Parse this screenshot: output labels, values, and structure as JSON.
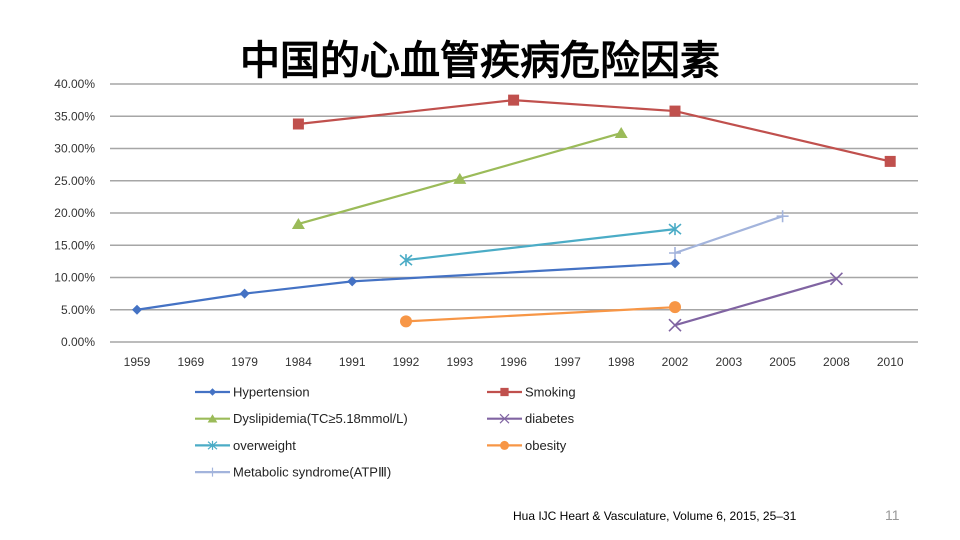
{
  "slide": {
    "title": "中国的心血管疾病危险因素",
    "citation": "Hua IJC Heart & Vasculature, Volume 6, 2015, 25–31",
    "page_number": "11"
  },
  "chart_data": {
    "type": "line",
    "title": "中国的心血管疾病危险因素",
    "xlabel": "",
    "ylabel": "",
    "categories": [
      "1959",
      "1969",
      "1979",
      "1984",
      "1991",
      "1992",
      "1993",
      "1996",
      "1997",
      "1998",
      "2002",
      "2003",
      "2005",
      "2008",
      "2010"
    ],
    "ylim": [
      0,
      40
    ],
    "yticks": [
      "0.00%",
      "5.00%",
      "10.00%",
      "15.00%",
      "20.00%",
      "25.00%",
      "30.00%",
      "35.00%",
      "40.00%"
    ],
    "grid": true,
    "legend_position": "bottom",
    "series": [
      {
        "name": "Hypertension",
        "color": "#4472C4",
        "marker": "diamond",
        "points": [
          [
            "1959",
            5.0
          ],
          [
            "1979",
            7.5
          ],
          [
            "1991",
            9.4
          ],
          [
            "2002",
            12.2
          ]
        ]
      },
      {
        "name": "Smoking",
        "color": "#C0504D",
        "marker": "square",
        "points": [
          [
            "1984",
            33.8
          ],
          [
            "1996",
            37.5
          ],
          [
            "2002",
            35.8
          ],
          [
            "2010",
            28.0
          ]
        ]
      },
      {
        "name": "Dyslipidemia(TC≥5.18mmol/L)",
        "color": "#9BBB59",
        "marker": "triangle",
        "points": [
          [
            "1984",
            18.3
          ],
          [
            "1993",
            25.3
          ],
          [
            "1998",
            32.4
          ]
        ]
      },
      {
        "name": "diabetes",
        "color": "#8064A2",
        "marker": "x",
        "points": [
          [
            "2002",
            2.6
          ],
          [
            "2008",
            9.8
          ]
        ]
      },
      {
        "name": "overweight",
        "color": "#4BACC6",
        "marker": "asterisk",
        "points": [
          [
            "1992",
            12.7
          ],
          [
            "2002",
            17.5
          ]
        ]
      },
      {
        "name": "obesity",
        "color": "#F79646",
        "marker": "circle",
        "points": [
          [
            "1992",
            3.2
          ],
          [
            "2002",
            5.4
          ]
        ]
      },
      {
        "name": "Metabolic syndrome(ATPⅢ)",
        "color": "#A3B4DC",
        "marker": "plus",
        "points": [
          [
            "2002",
            13.8
          ],
          [
            "2005",
            19.5
          ]
        ]
      }
    ]
  }
}
